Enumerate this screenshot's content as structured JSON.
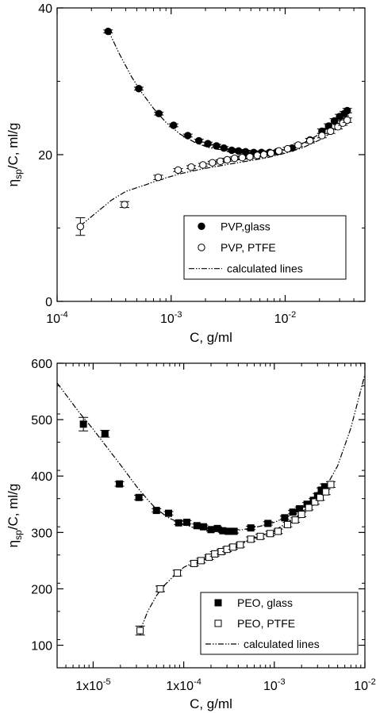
{
  "chart_data": [
    {
      "type": "scatter",
      "x_scale": "log",
      "xlim": [
        0.0001,
        0.05
      ],
      "ylim": [
        0,
        40
      ],
      "xlabel": "C, g/ml",
      "ylabel": {
        "main": "η",
        "sub": "sp",
        "rest": "/C, ml/g"
      },
      "x_ticks": [
        {
          "value": 0.0001,
          "base": "10",
          "exp": "-4"
        },
        {
          "value": 0.001,
          "base": "10",
          "exp": "-3"
        },
        {
          "value": 0.01,
          "base": "10",
          "exp": "-2"
        }
      ],
      "y_ticks": [
        0,
        20,
        40
      ],
      "legend_position": "bottom-right",
      "series": [
        {
          "name": "PVP,glass",
          "marker": "filled-circle",
          "x": [
            0.00028,
            0.00052,
            0.00078,
            0.00105,
            0.0014,
            0.00175,
            0.0021,
            0.0025,
            0.0029,
            0.0034,
            0.0039,
            0.0045,
            0.0053,
            0.0062,
            0.0073,
            0.0085,
            0.0115,
            0.0165,
            0.021,
            0.024,
            0.027,
            0.03,
            0.033,
            0.035
          ],
          "y": [
            36.8,
            29.0,
            25.6,
            24.0,
            22.6,
            21.9,
            21.5,
            21.2,
            20.9,
            20.6,
            20.5,
            20.4,
            20.3,
            20.3,
            20.3,
            20.4,
            20.9,
            22.0,
            23.2,
            23.9,
            24.6,
            25.2,
            25.6,
            26.0
          ],
          "err": [
            0.2,
            0.2,
            0.2,
            0.2,
            0.2,
            0.2,
            0.2,
            0.2,
            0.2,
            0.2,
            0.2,
            0.2,
            0.2,
            0.2,
            0.2,
            0.2,
            0.2,
            0.2,
            0.3,
            0.3,
            0.3,
            0.3,
            0.3,
            0.3
          ]
        },
        {
          "name": "PVP, PTFE",
          "marker": "open-circle",
          "x": [
            0.00016,
            0.00039,
            0.00077,
            0.00115,
            0.0015,
            0.0019,
            0.0023,
            0.0027,
            0.0031,
            0.0036,
            0.0042,
            0.0049,
            0.0057,
            0.0065,
            0.0075,
            0.0088,
            0.0105,
            0.013,
            0.0165,
            0.021,
            0.025,
            0.029,
            0.032,
            0.035
          ],
          "y": [
            10.2,
            13.2,
            16.9,
            17.9,
            18.3,
            18.6,
            18.9,
            19.1,
            19.3,
            19.5,
            19.6,
            19.7,
            19.9,
            20.0,
            20.2,
            20.5,
            20.8,
            21.3,
            21.9,
            22.6,
            23.2,
            23.8,
            24.3,
            24.7
          ],
          "err": [
            1.2,
            0.4,
            0.3,
            0.2,
            0.2,
            0.2,
            0.2,
            0.2,
            0.2,
            0.2,
            0.2,
            0.2,
            0.2,
            0.2,
            0.2,
            0.2,
            0.2,
            0.2,
            0.3,
            0.3,
            0.3,
            0.3,
            0.3,
            0.3
          ]
        }
      ],
      "lines": [
        {
          "name": "calculated lines",
          "style": "dash-dot-dot",
          "x": [
            0.00028,
            0.00035,
            0.00045,
            0.00055,
            0.0007,
            0.0009,
            0.0012,
            0.0016,
            0.0021,
            0.0028,
            0.0038,
            0.005,
            0.0065,
            0.0085,
            0.011,
            0.015,
            0.02,
            0.025,
            0.03,
            0.035
          ],
          "y": [
            37.0,
            33.8,
            30.6,
            28.5,
            26.3,
            24.4,
            22.8,
            21.7,
            21.0,
            20.6,
            20.4,
            20.3,
            20.3,
            20.5,
            20.9,
            21.7,
            22.8,
            23.9,
            25.0,
            26.1
          ]
        },
        {
          "name": "",
          "style": "dash-dot-dot",
          "x": [
            0.00016,
            0.0003,
            0.0004,
            0.0006,
            0.0008,
            0.0012,
            0.0018,
            0.0025,
            0.0035,
            0.005,
            0.007,
            0.01,
            0.014,
            0.02,
            0.026,
            0.032,
            0.035
          ],
          "y": [
            10.3,
            13.8,
            15.0,
            15.9,
            16.6,
            17.4,
            18.0,
            18.4,
            18.8,
            19.2,
            19.6,
            20.2,
            20.9,
            22.0,
            23.1,
            24.2,
            24.7
          ]
        }
      ]
    },
    {
      "type": "scatter",
      "x_scale": "log",
      "xlim": [
        4e-06,
        0.01
      ],
      "ylim": [
        60,
        600
      ],
      "xlabel": "C, g/ml",
      "ylabel": {
        "main": "η",
        "sub": "sp",
        "rest": "/C, ml/g"
      },
      "x_ticks": [
        {
          "value": 1e-05,
          "base": "1x10",
          "exp": "-5"
        },
        {
          "value": 0.0001,
          "base": "1x10",
          "exp": "-4"
        },
        {
          "value": 0.001,
          "base": "10",
          "exp": "-3"
        },
        {
          "value": 0.01,
          "base": "10",
          "exp": "-2"
        }
      ],
      "y_ticks": [
        100,
        200,
        300,
        400,
        500,
        600
      ],
      "legend_position": "bottom-right",
      "series": [
        {
          "name": "PEO, glass",
          "marker": "filled-square",
          "x": [
            7.8e-06,
            1.35e-05,
            1.95e-05,
            3.2e-05,
            5e-05,
            6.8e-05,
            8.8e-05,
            0.000108,
            0.00014,
            0.000165,
            0.0002,
            0.000235,
            0.00027,
            0.00031,
            0.00036,
            0.00055,
            0.00085,
            0.0013,
            0.0016,
            0.0019,
            0.0023,
            0.0027,
            0.003,
            0.0033,
            0.0036
          ],
          "y": [
            492,
            475,
            386,
            362,
            339,
            334,
            317,
            318,
            312,
            310,
            305,
            307,
            303,
            302,
            302,
            308,
            316,
            326,
            336,
            342,
            350,
            357,
            365,
            375,
            381
          ],
          "err": [
            12,
            6,
            4,
            4,
            3,
            3,
            3,
            3,
            3,
            3,
            3,
            3,
            3,
            3,
            3,
            3,
            3,
            3,
            3,
            3,
            3,
            3,
            4,
            4,
            5
          ]
        },
        {
          "name": "PEO, PTFE",
          "marker": "open-square",
          "x": [
            3.3e-05,
            5.5e-05,
            8.5e-05,
            0.00013,
            0.000155,
            0.00019,
            0.00022,
            0.00026,
            0.0003,
            0.00035,
            0.00042,
            0.00055,
            0.0007,
            0.0009,
            0.0011,
            0.0014,
            0.0017,
            0.002,
            0.0024,
            0.0028,
            0.0032,
            0.0037,
            0.0042
          ],
          "y": [
            126,
            200,
            228,
            245,
            250,
            256,
            262,
            266,
            270,
            274,
            278,
            288,
            293,
            298,
            302,
            314,
            322,
            332,
            344,
            354,
            362,
            372,
            385
          ],
          "err": [
            8,
            5,
            5,
            4,
            4,
            4,
            4,
            4,
            4,
            4,
            4,
            4,
            4,
            4,
            4,
            4,
            4,
            4,
            4,
            4,
            5,
            5,
            5
          ]
        }
      ],
      "lines": [
        {
          "name": "calculated lines",
          "style": "dash-dot-dot",
          "x": [
            4e-06,
            7e-06,
            1e-05,
            1.5e-05,
            2e-05,
            3e-05,
            4e-05,
            5e-05,
            7e-05,
            0.0001,
            0.00014,
            0.0002,
            0.0003,
            0.00045,
            0.0007,
            0.001,
            0.0015,
            0.002,
            0.003,
            0.004,
            0.005,
            0.007,
            0.01
          ],
          "y": [
            565,
            513,
            483,
            446,
            420,
            382,
            358,
            341,
            325,
            314,
            307,
            303,
            302,
            305,
            311,
            318,
            330,
            342,
            365,
            390,
            418,
            485,
            580
          ]
        },
        {
          "name": "",
          "style": "dash-dot-dot",
          "x": [
            3.3e-05,
            4e-05,
            5e-05,
            6e-05,
            8e-05,
            0.0001,
            0.00014,
            0.0002,
            0.0003,
            0.0004,
            0.0006,
            0.0008,
            0.001,
            0.0014,
            0.002,
            0.003,
            0.004
          ],
          "y": [
            126,
            160,
            188,
            205,
            225,
            238,
            250,
            262,
            272,
            280,
            290,
            297,
            303,
            318,
            334,
            360,
            382
          ]
        }
      ]
    }
  ]
}
